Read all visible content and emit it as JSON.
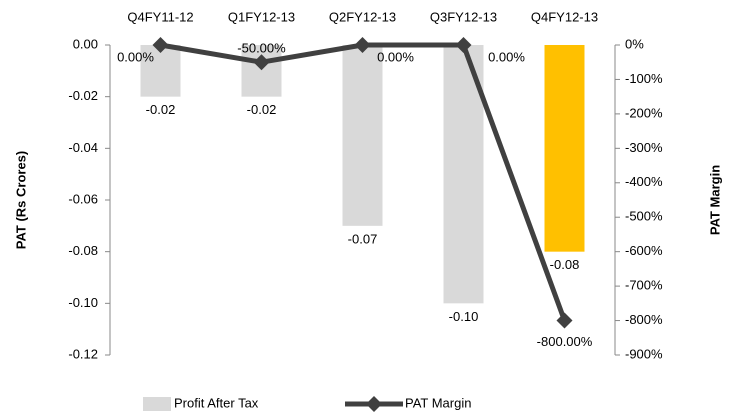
{
  "chart_data": {
    "type": "bar_line",
    "categories": [
      "Q4FY11-12",
      "Q1FY12-13",
      "Q2FY12-13",
      "Q3FY12-13",
      "Q4FY12-13"
    ],
    "series": [
      {
        "name": "Profit After Tax",
        "type": "bar",
        "color": "#d9d9d9",
        "colors": [
          "#d9d9d9",
          "#d9d9d9",
          "#d9d9d9",
          "#d9d9d9",
          "#ffc000"
        ],
        "values": [
          -0.02,
          -0.02,
          -0.07,
          -0.1,
          -0.08
        ],
        "value_labels": [
          "-0.02",
          "-0.02",
          "-0.07",
          "-0.10",
          "-0.08"
        ]
      },
      {
        "name": "PAT Margin",
        "type": "line",
        "axis": "y2",
        "color": "#404040",
        "values": [
          0,
          -50,
          0,
          0,
          -800
        ],
        "value_labels": [
          "0.00%",
          "-50.00%",
          "0.00%",
          "0.00%",
          "-800.00%"
        ]
      }
    ],
    "y_label": "PAT (Rs Crores)",
    "y2_label": "PAT Margin",
    "ylim": [
      -0.12,
      0
    ],
    "yticks": [
      {
        "value": 0,
        "label": "0.00"
      },
      {
        "value": -0.02,
        "label": "-0.02"
      },
      {
        "value": -0.04,
        "label": "-0.04"
      },
      {
        "value": -0.06,
        "label": "-0.06"
      },
      {
        "value": -0.08,
        "label": "-0.08"
      },
      {
        "value": -0.1,
        "label": "-0.10"
      },
      {
        "value": -0.12,
        "label": "-0.12"
      }
    ],
    "y2lim": [
      -900,
      0
    ],
    "y2ticks": [
      {
        "value": 0,
        "label": "0%"
      },
      {
        "value": -100,
        "label": "-100%"
      },
      {
        "value": -200,
        "label": "-200%"
      },
      {
        "value": -300,
        "label": "-300%"
      },
      {
        "value": -400,
        "label": "-400%"
      },
      {
        "value": -500,
        "label": "-500%"
      },
      {
        "value": -600,
        "label": "-600%"
      },
      {
        "value": -700,
        "label": "-700%"
      },
      {
        "value": -800,
        "label": "-800%"
      },
      {
        "value": -900,
        "label": "-900%"
      }
    ],
    "legend": "bottom"
  }
}
